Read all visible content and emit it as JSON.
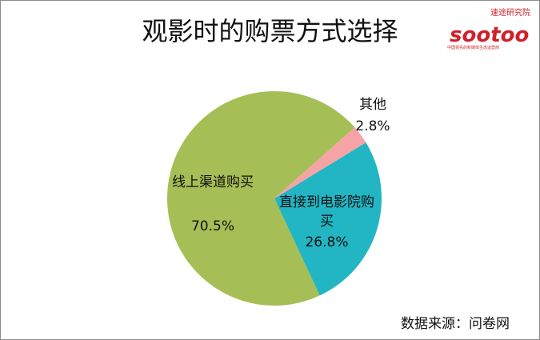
{
  "chart_data": {
    "type": "pie",
    "title": "观影时的购票方式选择",
    "categories": [
      "直接到电影院购买",
      "线上渠道购买",
      "其他"
    ],
    "values": [
      26.8,
      70.5,
      2.8
    ],
    "value_labels": [
      "26.8%",
      "70.5%",
      "2.8%"
    ],
    "colors": [
      "#22b5c4",
      "#a5be55",
      "#f5a3a5"
    ],
    "source": "数据来源：问卷网",
    "logo": {
      "brand": "sootoo",
      "name": "速途研究院",
      "slogan": "中国领先的新媒体生态运营商"
    }
  }
}
